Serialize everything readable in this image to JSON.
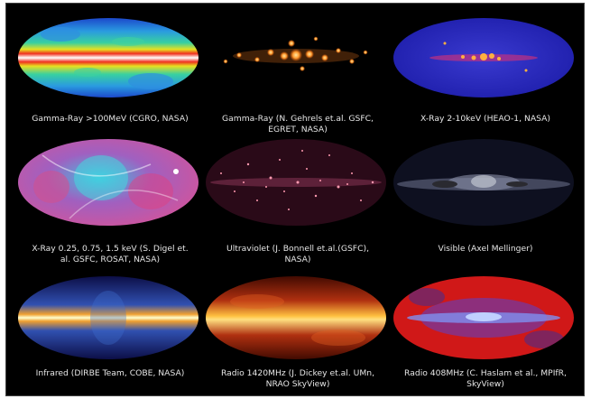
{
  "panels": [
    {
      "caption": [
        "Gamma-Ray >100MeV (CGRO, NASA)"
      ]
    },
    {
      "caption": [
        "Gamma-Ray (N. Gehrels et.al. GSFC,",
        "EGRET, NASA)"
      ]
    },
    {
      "caption": [
        "X-Ray 2-10keV (HEAO-1, NASA)"
      ]
    },
    {
      "caption": [
        "X-Ray 0.25, 0.75, 1.5 keV (S. Digel et.",
        "al. GSFC, ROSAT, NASA)"
      ]
    },
    {
      "caption": [
        "Ultraviolet (J. Bonnell et.al.(GSFC),",
        "NASA)"
      ]
    },
    {
      "caption": [
        "Visible (Axel Mellinger)"
      ]
    },
    {
      "caption": [
        "Infrared (DIRBE Team, COBE, NASA)"
      ]
    },
    {
      "caption": [
        "Radio 1420MHz (J. Dickey et.al. UMn,",
        "NRAO SkyView)"
      ]
    },
    {
      "caption": [
        "Radio 408MHz (C. Haslam et al., MPIfR,",
        "SkyView)"
      ]
    }
  ]
}
